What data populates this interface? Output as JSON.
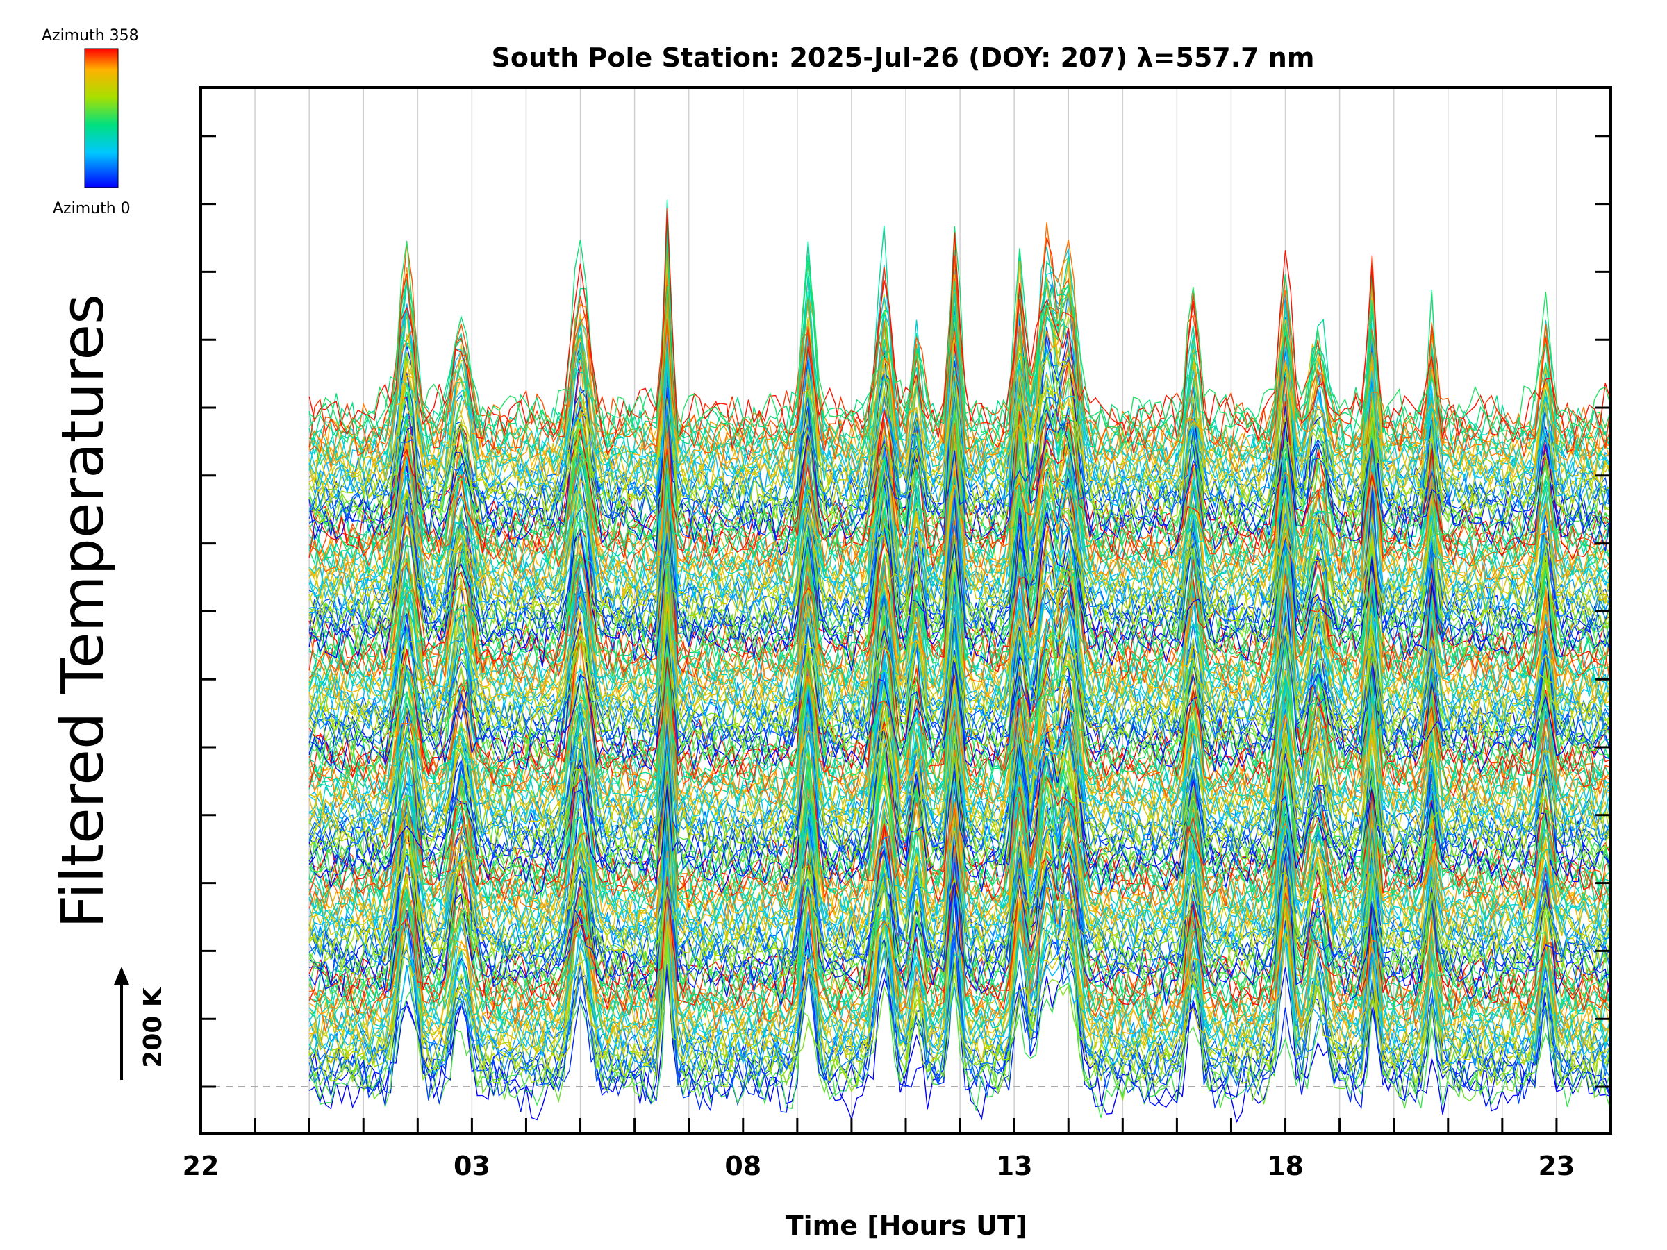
{
  "chart_data": {
    "type": "line",
    "title": "South Pole Station: 2025-Jul-26 (DOY: 207) λ=557.7 nm",
    "xlabel": "Time [Hours UT]",
    "ylabel": "Filtered Temperatures",
    "x_tick_labels": [
      "22",
      "03",
      "08",
      "13",
      "18",
      "23"
    ],
    "x_tick_hours": [
      22,
      27,
      32,
      37,
      42,
      47
    ],
    "xlim_hours": [
      22,
      48
    ],
    "data_start_hour": 24,
    "scale_bar": {
      "label": "200 K",
      "value_K": 200
    },
    "colorbar": {
      "min_label": "Azimuth 0",
      "max_label": "Azimuth 358",
      "min": 0,
      "max": 358,
      "colormap": "rainbow"
    },
    "num_traces": 216,
    "trace_spacing_K": 6,
    "series_note": "Stacked line traces, one per azimuth, offset vertically and colored by azimuth (blue = 0 to red = 358).",
    "disturbance_hours": [
      25.8,
      26.8,
      29.0,
      30.6,
      33.2,
      34.6,
      35.2,
      35.9,
      37.1,
      37.6,
      38.0,
      40.3,
      42.0,
      42.6,
      43.6,
      44.7,
      46.8
    ],
    "colors": {
      "axis": "#000000",
      "grid": "#d0d0d0",
      "baseline": "#aaaaaa"
    }
  }
}
